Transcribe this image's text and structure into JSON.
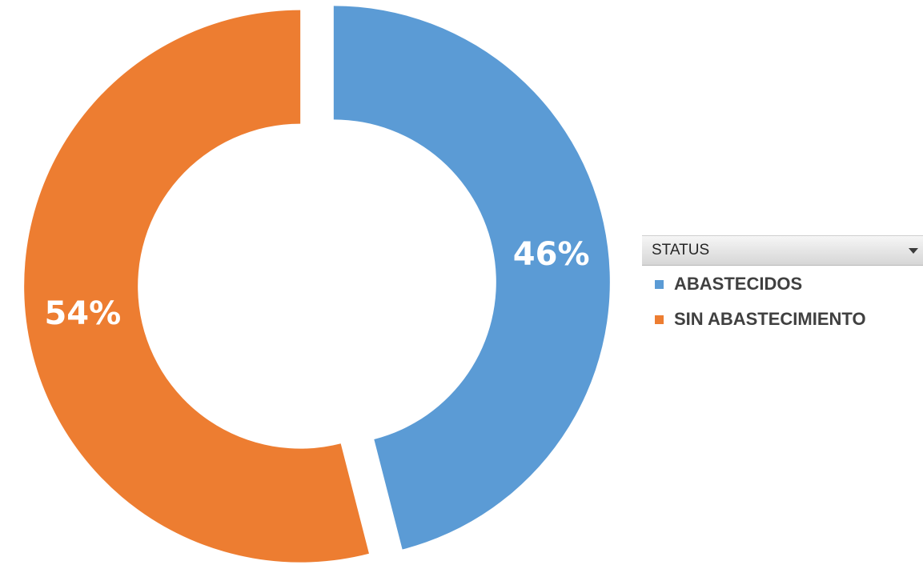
{
  "chart_data": {
    "type": "pie",
    "variant": "donut",
    "legend_title": "STATUS",
    "legend_position": "right",
    "categories": [
      "ABASTECIDOS",
      "SIN ABASTECIMIENTO"
    ],
    "values": [
      46,
      54
    ],
    "labels": [
      "46%",
      "54%"
    ],
    "colors": [
      "#5b9bd5",
      "#ed7d31"
    ],
    "exploded": true
  }
}
